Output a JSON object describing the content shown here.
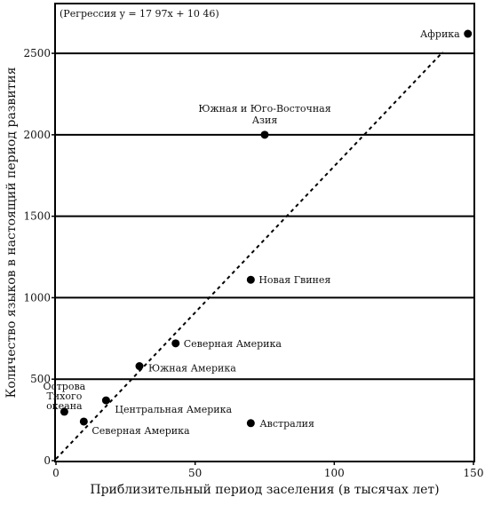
{
  "chart_data": {
    "type": "scatter",
    "regression_label": "(Регрессия  y = 17 97x + 10 46)",
    "regression": {
      "slope": 17.97,
      "intercept": 10.46
    },
    "xlabel": "Приблизительный период заселения (в тысячах лет)",
    "ylabel": "Количество языков в настоящий период развития",
    "xlim": [
      0,
      150
    ],
    "ylim": [
      0,
      2800
    ],
    "x_ticks": [
      "0",
      "50",
      "100",
      "150"
    ],
    "y_ticks": [
      "0",
      "500",
      "1000",
      "1500",
      "2000",
      "2500"
    ],
    "gridlines_y": [
      500,
      1000,
      1500,
      2000,
      2500
    ],
    "points": [
      {
        "x": 148,
        "y": 2620,
        "label": "Африка"
      },
      {
        "x": 75,
        "y": 2000,
        "label": "Южная и Юго-Восточная Азия"
      },
      {
        "x": 70,
        "y": 1110,
        "label": "Новая Гвинея"
      },
      {
        "x": 43,
        "y": 720,
        "label": "Северная Америка"
      },
      {
        "x": 30,
        "y": 580,
        "label": "Южная Америка"
      },
      {
        "x": 18,
        "y": 370,
        "label": "Центральная Америка"
      },
      {
        "x": 3,
        "y": 300,
        "label": "Острова Тихого океана"
      },
      {
        "x": 10,
        "y": 240,
        "label": "Северная Америка"
      },
      {
        "x": 70,
        "y": 230,
        "label": "Австралия"
      }
    ]
  }
}
